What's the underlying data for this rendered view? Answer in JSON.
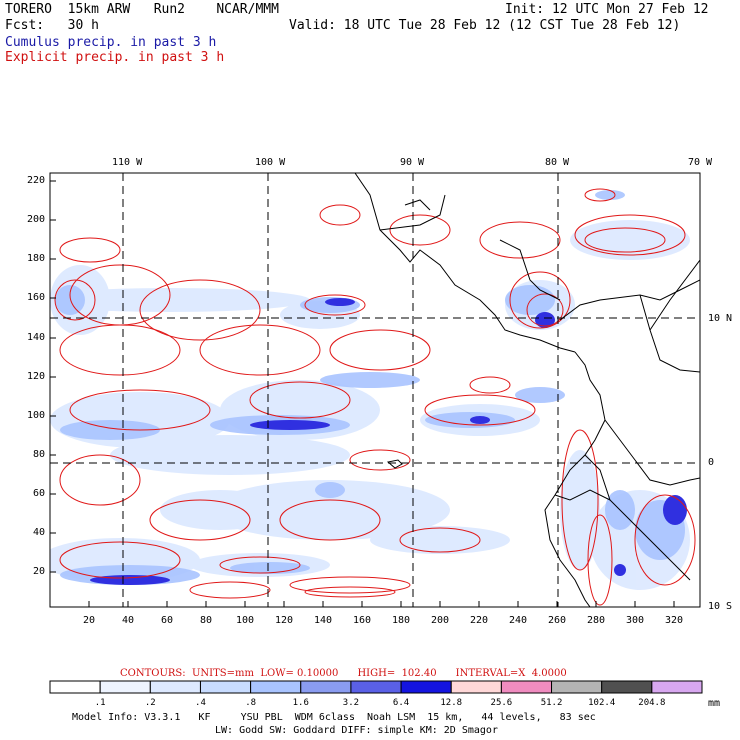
{
  "header": {
    "left_line1": "TORERO  15km ARW   Run2    NCAR/MMM",
    "left_line2": "Fcst:   30 h",
    "init": "Init: 12 UTC Mon 27 Feb 12",
    "valid": "Valid: 18 UTC Tue 28 Feb 12 (12 CST Tue 28 Feb 12)",
    "cumulus": "Cumulus precip. in past 3 h",
    "explicit": "Explicit precip. in past 3 h"
  },
  "map": {
    "lon_labels": [
      "110 W",
      "100 W",
      "90 W",
      "80 W",
      "70 W"
    ],
    "lat_labels": [
      "10 N",
      "0",
      "10 S"
    ],
    "y_ticks": [
      "220",
      "200",
      "180",
      "160",
      "140",
      "120",
      "100",
      "80",
      "60",
      "40",
      "20"
    ],
    "x_ticks": [
      "20",
      "40",
      "60",
      "80",
      "100",
      "120",
      "140",
      "160",
      "180",
      "200",
      "220",
      "240",
      "260",
      "280",
      "300",
      "320"
    ]
  },
  "contour_info": {
    "text": "CONTOURS:  UNITS=mm  LOW= 0.10000      HIGH=  102.40      INTERVAL=X  4.0000"
  },
  "legend": {
    "labels": [
      ".1",
      ".2",
      ".4",
      ".8",
      "1.6",
      "3.2",
      "6.4",
      "12.8",
      "25.6",
      "51.2",
      "102.4",
      "204.8"
    ],
    "unit": "mm",
    "colors": [
      "#ffffff",
      "#eef4ff",
      "#dde9ff",
      "#c8dcff",
      "#a9c4ff",
      "#8a9cf0",
      "#5a60e6",
      "#1414e0",
      "#ffd8d8",
      "#f08cc0",
      "#b4b4b4",
      "#505050",
      "#d8a8f0"
    ]
  },
  "model_info": {
    "line1": "Model Info: V3.3.1   KF     YSU PBL  WDM 6class  Noah LSM  15 km,   44 levels,   83 sec",
    "line2": "LW: Godd SW: Goddard DIFF: simple KM: 2D Smagor"
  }
}
